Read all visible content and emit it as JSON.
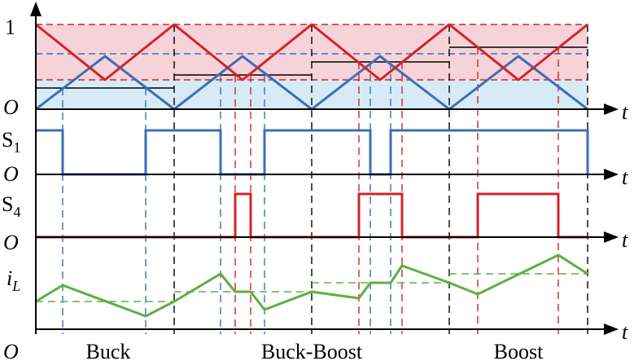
{
  "labels": {
    "one": "1",
    "origin": "O",
    "time_axis": "t",
    "switch1_main": "S",
    "switch1_sub": "1",
    "switch4_main": "S",
    "switch4_sub": "4",
    "current_main": "i",
    "current_sub": "L"
  },
  "modes": [
    "Buck",
    "Buck-Boost",
    "Boost"
  ],
  "colors": {
    "carrier_up": "#3b6fb6",
    "carrier_down": "#d2232a",
    "inductor_current": "#5cb040",
    "band_red_fill": "#f6d3d8",
    "band_blue_fill": "#d7ebf7",
    "axis": "#000000"
  }
}
